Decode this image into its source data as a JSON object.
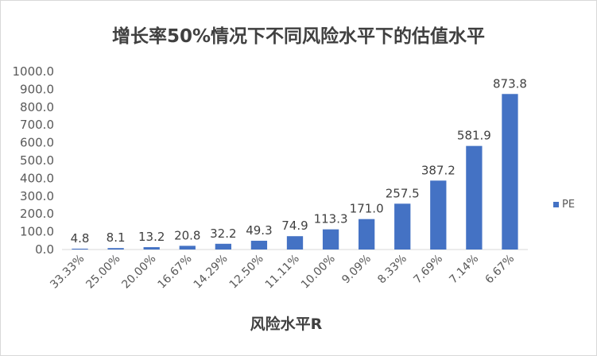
{
  "chart_data": {
    "type": "bar",
    "title": "增长率50%情况下不同风险水平下的估值水平",
    "xlabel": "风险水平R",
    "ylabel": "",
    "categories": [
      "33.33%",
      "25.00%",
      "20.00%",
      "16.67%",
      "14.29%",
      "12.50%",
      "11.11%",
      "10.00%",
      "9.09%",
      "8.33%",
      "7.69%",
      "7.14%",
      "6.67%"
    ],
    "series": [
      {
        "name": "PE",
        "values": [
          4.8,
          8.1,
          13.2,
          20.8,
          32.2,
          49.3,
          74.9,
          113.3,
          171.0,
          257.5,
          387.2,
          581.9,
          873.8
        ]
      }
    ],
    "data_labels": [
      "4.8",
      "8.1",
      "13.2",
      "20.8",
      "32.2",
      "49.3",
      "74.9",
      "113.3",
      "171.0",
      "257.5",
      "387.2",
      "581.9",
      "873.8"
    ],
    "ylim": [
      0,
      1000
    ],
    "yticks": [
      "0.0",
      "100.0",
      "200.0",
      "300.0",
      "400.0",
      "500.0",
      "600.0",
      "700.0",
      "800.0",
      "900.0",
      "1000.0"
    ],
    "grid": false,
    "legend": "right",
    "bar_color": "#4472c4"
  }
}
